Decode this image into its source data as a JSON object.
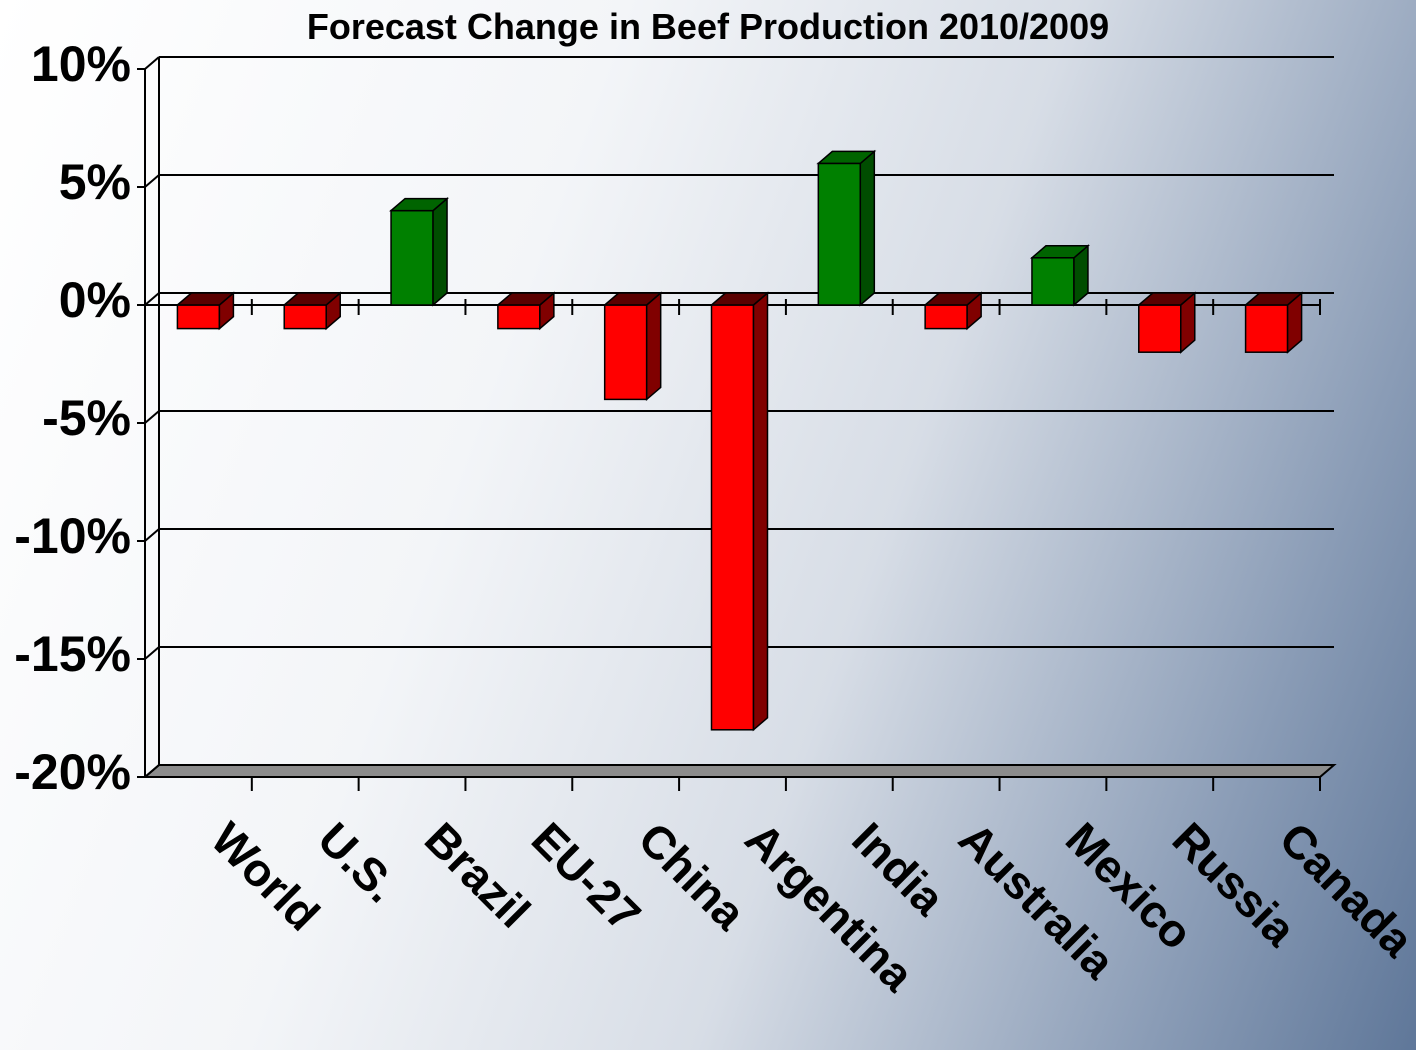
{
  "chart_data": {
    "type": "bar",
    "title": "Forecast Change in Beef Production 2010/2009",
    "categories": [
      "World",
      "U.S.",
      "Brazil",
      "EU-27",
      "China",
      "Argentina",
      "India",
      "Australia",
      "Mexico",
      "Russia",
      "Canada"
    ],
    "values": [
      -1,
      -1,
      4,
      -1,
      -4,
      -18,
      6,
      -1,
      2,
      -2,
      -2
    ],
    "ylim": [
      -20,
      10
    ],
    "yticks": [
      "10%",
      "5%",
      "0%",
      "-5%",
      "-10%",
      "-15%",
      "-20%"
    ],
    "ytick_values": [
      10,
      5,
      0,
      -5,
      -10,
      -15,
      -20
    ],
    "grid": true,
    "style": "3d-column",
    "colors": {
      "positive": "#008000",
      "positive_side": "#004d00",
      "positive_top": "#006400",
      "negative": "#ff0000",
      "negative_side": "#800000",
      "negative_top": "#5a0000",
      "floor": "#8c8c8c"
    }
  }
}
